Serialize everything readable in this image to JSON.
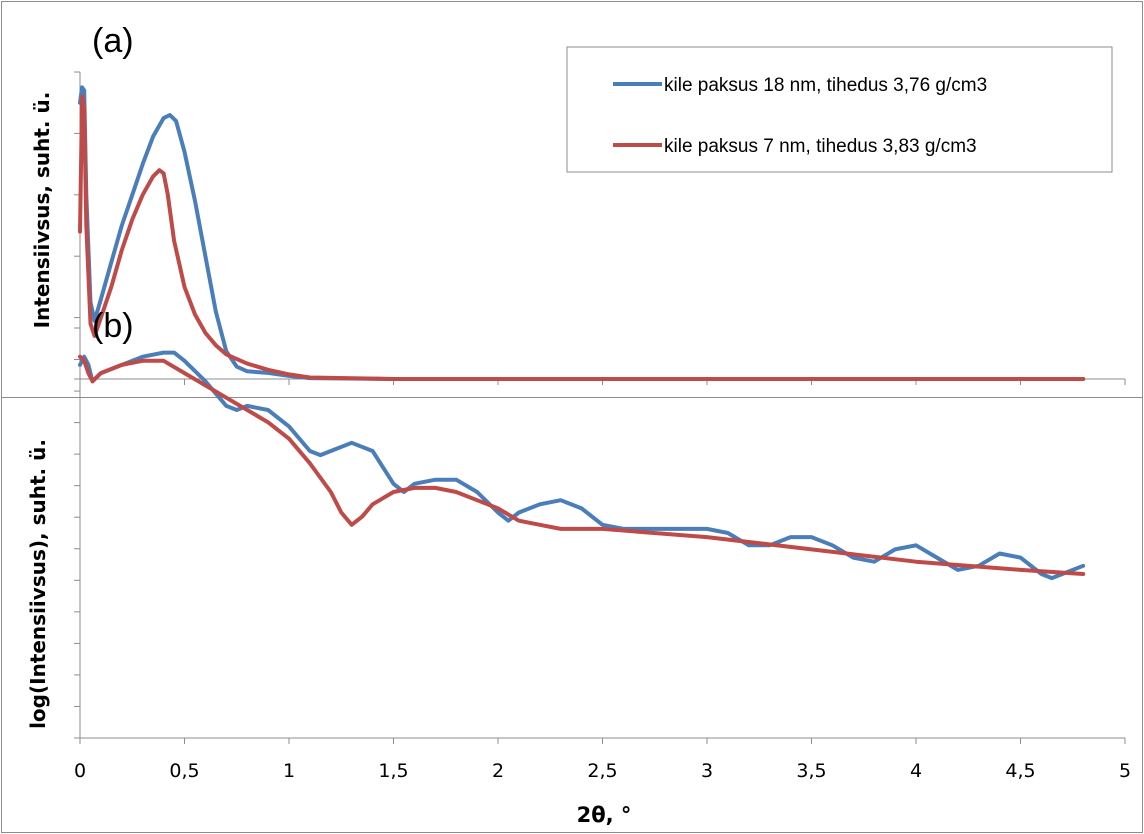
{
  "chart_data": [
    {
      "type": "line",
      "panel_label": "(a)",
      "ylabel": "Intensiivsus, suht. ü.",
      "xlim": [
        0,
        5
      ],
      "ylim": [
        0,
        1
      ],
      "y_tick_labels": "hidden",
      "legend": {
        "placement": "top-right",
        "entries": [
          "kile paksus 18 nm, tihedus 3,76 g/cm3",
          "kile paksus 7 nm, tihedus 3,83 g/cm3"
        ]
      },
      "series": [
        {
          "name": "kile paksus 18 nm, tihedus 3,76 g/cm3",
          "color": "#4a7ebb",
          "x": [
            0.0,
            0.01,
            0.02,
            0.03,
            0.05,
            0.07,
            0.1,
            0.15,
            0.2,
            0.25,
            0.3,
            0.35,
            0.4,
            0.43,
            0.46,
            0.5,
            0.55,
            0.6,
            0.65,
            0.7,
            0.75,
            0.8,
            0.9,
            1.0,
            1.1,
            1.5,
            2.0,
            3.0,
            4.0,
            4.8
          ],
          "y": [
            0.9,
            0.95,
            0.94,
            0.6,
            0.25,
            0.19,
            0.26,
            0.38,
            0.5,
            0.6,
            0.7,
            0.79,
            0.85,
            0.86,
            0.84,
            0.74,
            0.58,
            0.4,
            0.22,
            0.09,
            0.04,
            0.025,
            0.02,
            0.01,
            0.003,
            0.0,
            0.0,
            0.0,
            0.0,
            0.0
          ]
        },
        {
          "name": "kile paksus 7 nm, tihedus 3,83 g/cm3",
          "color": "#be4b48",
          "x": [
            0.0,
            0.01,
            0.02,
            0.03,
            0.05,
            0.07,
            0.1,
            0.15,
            0.2,
            0.25,
            0.3,
            0.35,
            0.38,
            0.4,
            0.42,
            0.45,
            0.5,
            0.55,
            0.6,
            0.65,
            0.7,
            0.8,
            0.9,
            1.0,
            1.1,
            1.5,
            2.0,
            3.0,
            4.0,
            4.8
          ],
          "y": [
            0.48,
            0.92,
            0.88,
            0.5,
            0.18,
            0.14,
            0.2,
            0.3,
            0.42,
            0.52,
            0.6,
            0.66,
            0.68,
            0.67,
            0.6,
            0.45,
            0.3,
            0.21,
            0.15,
            0.11,
            0.08,
            0.05,
            0.03,
            0.015,
            0.005,
            0.0,
            0.0,
            0.0,
            0.0,
            0.0
          ]
        }
      ]
    },
    {
      "type": "line",
      "panel_label": "(b)",
      "xlabel": "2θ, °",
      "ylabel": "log(Intensiivsus), suht. ü.",
      "xlim": [
        0,
        5
      ],
      "ylim": [
        0,
        1
      ],
      "y_tick_labels": "hidden",
      "x_tick_labels": [
        "0",
        "0,5",
        "1",
        "1,5",
        "2",
        "2,5",
        "3",
        "3,5",
        "4",
        "4,5",
        "5"
      ],
      "series": [
        {
          "name": "kile paksus 18 nm, tihedus 3,76 g/cm3",
          "color": "#4a7ebb",
          "x": [
            0.0,
            0.02,
            0.04,
            0.06,
            0.1,
            0.2,
            0.3,
            0.4,
            0.45,
            0.5,
            0.6,
            0.7,
            0.75,
            0.8,
            0.9,
            1.0,
            1.1,
            1.15,
            1.2,
            1.3,
            1.4,
            1.5,
            1.55,
            1.6,
            1.7,
            1.8,
            1.9,
            2.0,
            2.05,
            2.1,
            2.2,
            2.3,
            2.4,
            2.5,
            2.6,
            2.7,
            2.8,
            2.9,
            3.0,
            3.1,
            3.2,
            3.3,
            3.4,
            3.5,
            3.6,
            3.7,
            3.8,
            3.9,
            4.0,
            4.1,
            4.2,
            4.3,
            4.4,
            4.5,
            4.6,
            4.65,
            4.7,
            4.8
          ],
          "y": [
            0.91,
            0.93,
            0.91,
            0.87,
            0.89,
            0.91,
            0.93,
            0.94,
            0.94,
            0.92,
            0.87,
            0.81,
            0.8,
            0.81,
            0.8,
            0.76,
            0.7,
            0.69,
            0.7,
            0.72,
            0.7,
            0.62,
            0.6,
            0.62,
            0.63,
            0.63,
            0.6,
            0.55,
            0.53,
            0.55,
            0.57,
            0.58,
            0.56,
            0.52,
            0.51,
            0.51,
            0.51,
            0.51,
            0.51,
            0.5,
            0.47,
            0.47,
            0.49,
            0.49,
            0.47,
            0.44,
            0.43,
            0.46,
            0.47,
            0.44,
            0.41,
            0.42,
            0.45,
            0.44,
            0.4,
            0.39,
            0.4,
            0.42
          ]
        },
        {
          "name": "kile paksus 7 nm, tihedus 3,83 g/cm3",
          "color": "#be4b48",
          "x": [
            0.0,
            0.02,
            0.04,
            0.06,
            0.1,
            0.2,
            0.3,
            0.4,
            0.5,
            0.6,
            0.7,
            0.8,
            0.9,
            1.0,
            1.1,
            1.2,
            1.25,
            1.3,
            1.35,
            1.4,
            1.5,
            1.6,
            1.7,
            1.8,
            1.9,
            2.0,
            2.1,
            2.2,
            2.3,
            2.5,
            3.0,
            3.5,
            4.0,
            4.5,
            4.8
          ],
          "y": [
            0.93,
            0.92,
            0.89,
            0.87,
            0.89,
            0.91,
            0.92,
            0.92,
            0.89,
            0.86,
            0.83,
            0.8,
            0.77,
            0.73,
            0.67,
            0.6,
            0.55,
            0.52,
            0.54,
            0.57,
            0.6,
            0.61,
            0.61,
            0.6,
            0.58,
            0.56,
            0.53,
            0.52,
            0.51,
            0.51,
            0.49,
            0.46,
            0.43,
            0.41,
            0.4
          ]
        }
      ]
    }
  ]
}
